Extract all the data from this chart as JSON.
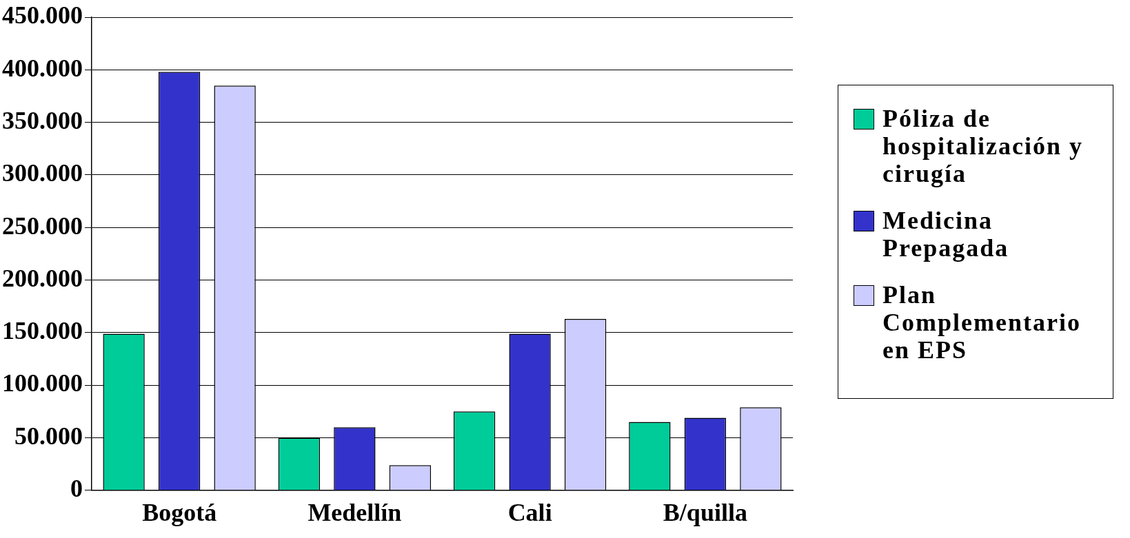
{
  "chart_data": {
    "type": "bar",
    "categories": [
      "Bogotá",
      "Medellín",
      "Cali",
      "B/quilla"
    ],
    "series": [
      {
        "name": "Póliza de hospitalización y cirugía",
        "color": "#00cc99",
        "values": [
          149000,
          50000,
          75000,
          65000
        ]
      },
      {
        "name": "Medicina Prepagada",
        "color": "#3333cc",
        "values": [
          398000,
          60000,
          149000,
          69000
        ]
      },
      {
        "name": "Plan Complementario en EPS",
        "color": "#ccccff",
        "values": [
          385000,
          24000,
          163000,
          79000
        ]
      }
    ],
    "ylim": [
      0,
      450000
    ],
    "yticks": [
      {
        "value": 0,
        "label": "0"
      },
      {
        "value": 50000,
        "label": "50.000"
      },
      {
        "value": 100000,
        "label": "100.000"
      },
      {
        "value": 150000,
        "label": "150.000"
      },
      {
        "value": 200000,
        "label": "200.000"
      },
      {
        "value": 250000,
        "label": "250.000"
      },
      {
        "value": 300000,
        "label": "300.000"
      },
      {
        "value": 350000,
        "label": "350.000"
      },
      {
        "value": 400000,
        "label": "400.000"
      },
      {
        "value": 450000,
        "label": "450.000"
      }
    ],
    "grid": "y",
    "legend": "right"
  }
}
